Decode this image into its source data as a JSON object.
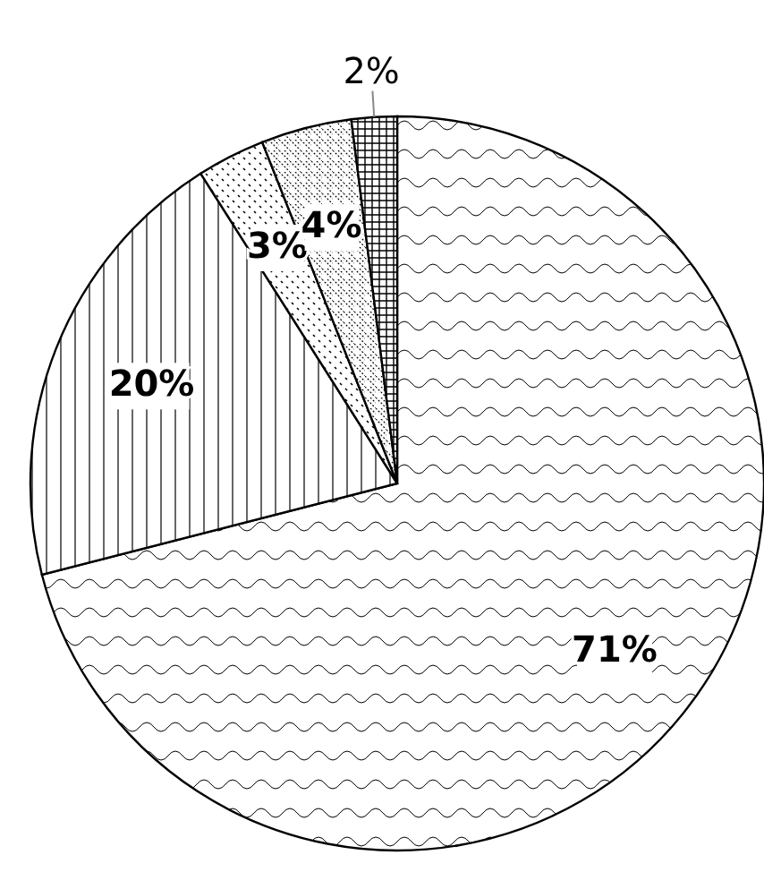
{
  "chart_data": {
    "type": "pie",
    "categories": [
      null,
      null,
      null,
      null,
      null
    ],
    "values": [
      71,
      20,
      3,
      4,
      2
    ],
    "colors": [
      "#ffffff",
      "#ffffff",
      "#ffffff",
      "#ffffff",
      "#ffffff"
    ],
    "value_labels": [
      "71%",
      "20%",
      "3%",
      "4%",
      "2%"
    ]
  }
}
